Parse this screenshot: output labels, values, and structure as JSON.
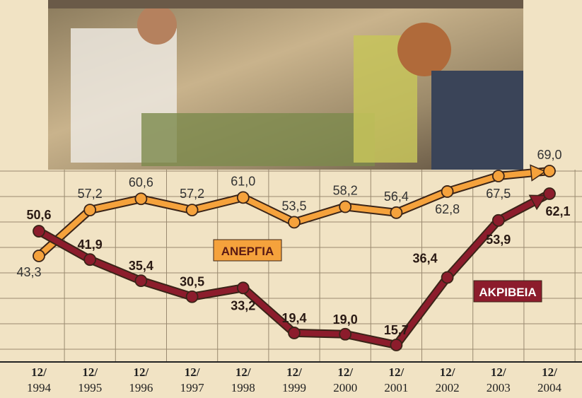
{
  "chart_data": {
    "type": "line",
    "categories": [
      "12/\n1994",
      "12/\n1995",
      "12/\n1996",
      "12/\n1997",
      "12/\n1998",
      "12/\n1999",
      "12/\n2000",
      "12/\n2001",
      "12/\n2002",
      "12/\n2003",
      "12/\n2004"
    ],
    "series": [
      {
        "name": "ΑΝΕΡΓΙΑ",
        "color": "#f5a23c",
        "values": [
          43.3,
          57.2,
          60.6,
          57.2,
          61.0,
          53.5,
          58.2,
          56.4,
          62.8,
          67.5,
          69.0
        ],
        "value_labels": [
          "43,3",
          "57,2",
          "60,6",
          "57,2",
          "61,0",
          "53,5",
          "58,2",
          "56,4",
          "62,8",
          "67,5",
          "69,0"
        ]
      },
      {
        "name": "ΑΚΡΙΒΕΙΑ",
        "color": "#8c1c2c",
        "values": [
          50.6,
          41.9,
          35.4,
          30.5,
          33.2,
          19.4,
          19.0,
          15.7,
          36.4,
          53.9,
          62.1
        ],
        "value_labels": [
          "50,6",
          "41,9",
          "35,4",
          "30,5",
          "33,2",
          "19,4",
          "19,0",
          "15,7",
          "36,4",
          "53,9",
          "62,1"
        ]
      }
    ]
  }
}
